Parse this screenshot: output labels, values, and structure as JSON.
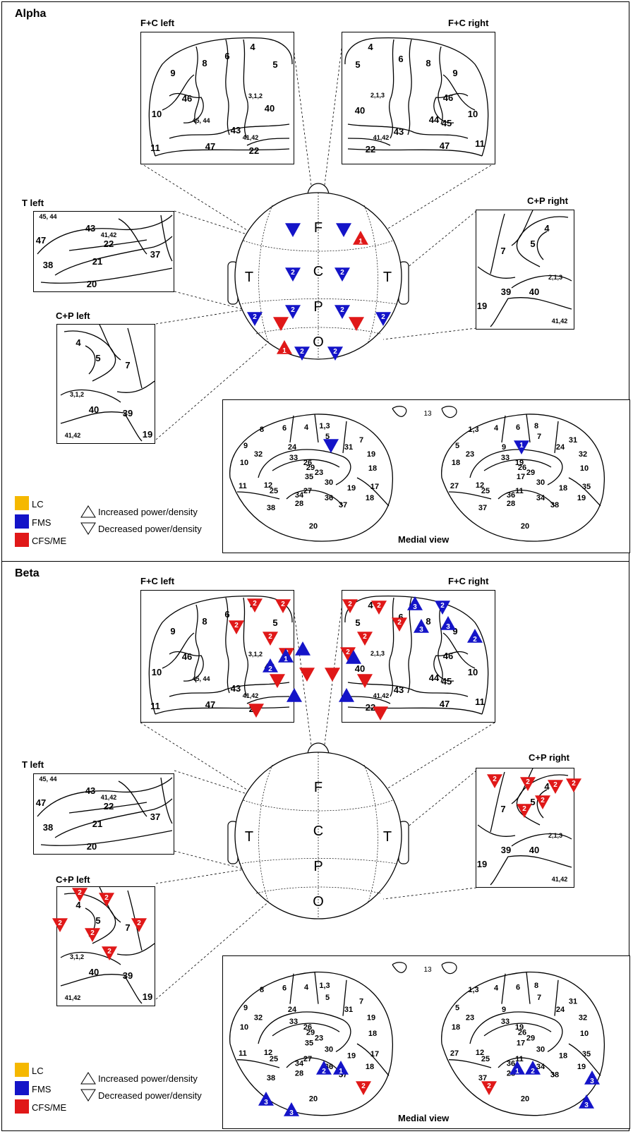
{
  "colors": {
    "lc": "#f5b800",
    "fms": "#1414c8",
    "cfs": "#e01818"
  },
  "legend": {
    "lc": "LC",
    "fms": "FMS",
    "cfs": "CFS/ME",
    "increased": "Increased power/density",
    "decreased": "Decreased power/density"
  },
  "panels": [
    {
      "title": "Alpha",
      "boxes": {
        "fc_left": "F+C left",
        "fc_right": "F+C right",
        "t_left": "T left",
        "cp_right": "C+P right",
        "cp_left": "C+P left"
      },
      "medial_title": "Medial view",
      "head_letters": {
        "f": "F",
        "c": "C",
        "p": "P",
        "o": "O",
        "tl": "T",
        "tr": "T"
      },
      "markers": [
        {
          "g": "fms",
          "dir": "down",
          "n": "",
          "loc": "head F left"
        },
        {
          "g": "fms",
          "dir": "down",
          "n": "",
          "loc": "head F right"
        },
        {
          "g": "cfs",
          "dir": "up",
          "n": "1",
          "loc": "head F right"
        },
        {
          "g": "fms",
          "dir": "down",
          "n": "2",
          "loc": "head C left"
        },
        {
          "g": "fms",
          "dir": "down",
          "n": "2",
          "loc": "head C right"
        },
        {
          "g": "fms",
          "dir": "down",
          "n": "2",
          "loc": "head T left"
        },
        {
          "g": "fms",
          "dir": "down",
          "n": "2",
          "loc": "head P left"
        },
        {
          "g": "cfs",
          "dir": "down",
          "n": "",
          "loc": "head P left"
        },
        {
          "g": "fms",
          "dir": "down",
          "n": "2",
          "loc": "head P right"
        },
        {
          "g": "cfs",
          "dir": "down",
          "n": "",
          "loc": "head P right"
        },
        {
          "g": "fms",
          "dir": "down",
          "n": "2",
          "loc": "head T right"
        },
        {
          "g": "cfs",
          "dir": "up",
          "n": "1",
          "loc": "head O left"
        },
        {
          "g": "fms",
          "dir": "down",
          "n": "2",
          "loc": "head O left"
        },
        {
          "g": "fms",
          "dir": "down",
          "n": "2",
          "loc": "head O right"
        },
        {
          "g": "fms",
          "dir": "down",
          "n": "",
          "loc": "medial left"
        },
        {
          "g": "fms",
          "dir": "down",
          "n": "1",
          "loc": "medial right"
        }
      ]
    },
    {
      "title": "Beta",
      "boxes": {
        "fc_left": "F+C left",
        "fc_right": "F+C right",
        "t_left": "T left",
        "cp_right": "C+P right",
        "cp_left": "C+P left"
      },
      "medial_title": "Medial view",
      "head_letters": {
        "f": "F",
        "c": "C",
        "p": "P",
        "o": "O",
        "tl": "T",
        "tr": "T"
      },
      "markers": [
        {
          "g": "cfs",
          "dir": "down",
          "n": "2",
          "loc": "F+C left area 4"
        },
        {
          "g": "cfs",
          "dir": "down",
          "n": "2",
          "loc": "F+C left area 5"
        },
        {
          "g": "cfs",
          "dir": "down",
          "n": "2",
          "loc": "F+C left area 6"
        },
        {
          "g": "cfs",
          "dir": "down",
          "n": "2",
          "loc": "F+C left area 3,1,2"
        },
        {
          "g": "cfs",
          "dir": "down",
          "n": "2",
          "loc": "F+C left area 40"
        },
        {
          "g": "cfs",
          "dir": "down",
          "n": "2",
          "loc": "F+C right area 5"
        },
        {
          "g": "cfs",
          "dir": "down",
          "n": "2",
          "loc": "F+C right area 4"
        },
        {
          "g": "cfs",
          "dir": "down",
          "n": "2",
          "loc": "F+C right area 2,1,3"
        },
        {
          "g": "cfs",
          "dir": "down",
          "n": "2",
          "loc": "F+C right area 40"
        },
        {
          "g": "cfs",
          "dir": "down",
          "n": "2",
          "loc": "F+C right area 6"
        },
        {
          "g": "fms",
          "dir": "up",
          "n": "3",
          "loc": "F+C right area 6"
        },
        {
          "g": "fms",
          "dir": "down",
          "n": "2",
          "loc": "F+C right area 8"
        },
        {
          "g": "fms",
          "dir": "up",
          "n": "3",
          "loc": "F+C right area 8"
        },
        {
          "g": "fms",
          "dir": "up",
          "n": "3",
          "loc": "F+C right area 9"
        },
        {
          "g": "fms",
          "dir": "up",
          "n": "2",
          "loc": "F+C right area 9"
        },
        {
          "g": "fms",
          "dir": "up",
          "n": "2",
          "loc": "head F left"
        },
        {
          "g": "fms",
          "dir": "up",
          "n": "1",
          "loc": "head F left"
        },
        {
          "g": "fms",
          "dir": "up",
          "n": "",
          "loc": "head F"
        },
        {
          "g": "fms",
          "dir": "up",
          "n": "",
          "loc": "head F right"
        },
        {
          "g": "cfs",
          "dir": "down",
          "n": "",
          "loc": "head F left"
        },
        {
          "g": "cfs",
          "dir": "down",
          "n": "",
          "loc": "head F right"
        },
        {
          "g": "cfs",
          "dir": "down",
          "n": "",
          "loc": "head C left"
        },
        {
          "g": "fms",
          "dir": "up",
          "n": "",
          "loc": "head C left"
        },
        {
          "g": "fms",
          "dir": "up",
          "n": "",
          "loc": "head C right"
        },
        {
          "g": "cfs",
          "dir": "down",
          "n": "",
          "loc": "head C right"
        },
        {
          "g": "cfs",
          "dir": "down",
          "n": "",
          "loc": "head T left"
        },
        {
          "g": "cfs",
          "dir": "down",
          "n": "",
          "loc": "head T right"
        },
        {
          "g": "cfs",
          "dir": "down",
          "n": "2",
          "loc": "C+P right area 7"
        },
        {
          "g": "cfs",
          "dir": "down",
          "n": "2",
          "loc": "C+P right area 5"
        },
        {
          "g": "cfs",
          "dir": "down",
          "n": "2",
          "loc": "C+P right area 4"
        },
        {
          "g": "cfs",
          "dir": "down",
          "n": "2",
          "loc": "C+P right area 2,1,3"
        },
        {
          "g": "cfs",
          "dir": "down",
          "n": "2",
          "loc": "C+P right area 40"
        },
        {
          "g": "cfs",
          "dir": "down",
          "n": "2",
          "loc": "C+P right edge"
        },
        {
          "g": "cfs",
          "dir": "down",
          "n": "2",
          "loc": "C+P left area 4"
        },
        {
          "g": "cfs",
          "dir": "down",
          "n": "2",
          "loc": "C+P left area 5"
        },
        {
          "g": "cfs",
          "dir": "down",
          "n": "2",
          "loc": "C+P left area 7"
        },
        {
          "g": "cfs",
          "dir": "down",
          "n": "2",
          "loc": "C+P left area 3,1,2"
        },
        {
          "g": "cfs",
          "dir": "down",
          "n": "2",
          "loc": "C+P left area 40"
        },
        {
          "g": "cfs",
          "dir": "down",
          "n": "2",
          "loc": "C+P left edge"
        },
        {
          "g": "fms",
          "dir": "up",
          "n": "3",
          "loc": "medial left area 32"
        },
        {
          "g": "fms",
          "dir": "up",
          "n": "3",
          "loc": "medial left area 25"
        },
        {
          "g": "fms",
          "dir": "up",
          "n": "2",
          "loc": "medial left area 24"
        },
        {
          "g": "fms",
          "dir": "up",
          "n": "1",
          "loc": "medial left area 5"
        },
        {
          "g": "cfs",
          "dir": "down",
          "n": "2",
          "loc": "medial left area 31"
        },
        {
          "g": "cfs",
          "dir": "down",
          "n": "2",
          "loc": "medial right area 31"
        },
        {
          "g": "fms",
          "dir": "up",
          "n": "1",
          "loc": "medial right area 5"
        },
        {
          "g": "fms",
          "dir": "up",
          "n": "2",
          "loc": "medial right area 4"
        },
        {
          "g": "fms",
          "dir": "up",
          "n": "3",
          "loc": "medial right area 32"
        },
        {
          "g": "fms",
          "dir": "up",
          "n": "3",
          "loc": "medial right area 12"
        }
      ]
    }
  ],
  "brain_labels": {
    "fc_left": [
      "9",
      "8",
      "6",
      "4",
      "5",
      "46",
      "3,1,2",
      "40",
      "10",
      "45, 44",
      "43",
      "41,42",
      "22",
      "47",
      "11"
    ],
    "fc_right": [
      "4",
      "6",
      "8",
      "9",
      "5",
      "2,1,3",
      "46",
      "40",
      "44",
      "45",
      "10",
      "41,42",
      "43",
      "22",
      "47",
      "11"
    ],
    "t_left": [
      "45, 44",
      "43",
      "41,42",
      "47",
      "22",
      "37",
      "38",
      "21",
      "20"
    ],
    "cp_right": [
      "4",
      "5",
      "7",
      "2,1,3",
      "39",
      "40",
      "19",
      "41,42"
    ],
    "cp_left": [
      "4",
      "5",
      "7",
      "3,1,2",
      "40",
      "39",
      "19",
      "41,42"
    ],
    "med_left": [
      "8",
      "6",
      "4",
      "1,3",
      "9",
      "24",
      "5",
      "7",
      "31",
      "32",
      "33",
      "26",
      "29",
      "23",
      "19",
      "18",
      "10",
      "35",
      "30",
      "17",
      "11",
      "12",
      "25",
      "27",
      "34",
      "36",
      "19",
      "18",
      "28",
      "37",
      "38",
      "20"
    ],
    "med_right": [
      "1,3",
      "4",
      "6",
      "8",
      "5",
      "9",
      "7",
      "31",
      "24",
      "23",
      "33",
      "19",
      "26",
      "29",
      "32",
      "10",
      "18",
      "17",
      "30",
      "35",
      "27",
      "12",
      "25",
      "11",
      "36",
      "34",
      "18",
      "19",
      "28",
      "38",
      "37",
      "20"
    ],
    "top13": "13"
  }
}
